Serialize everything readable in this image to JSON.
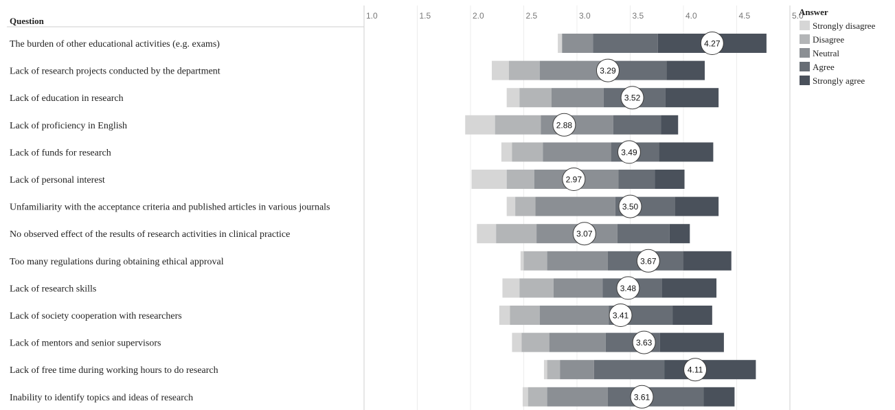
{
  "chart_data": {
    "type": "bar",
    "subtype": "diverging-stacked-likert",
    "row_header": "Question",
    "x_ticks": [
      "1.0",
      "1.5",
      "2.0",
      "2.5",
      "3.0",
      "3.5",
      "4.0",
      "4.5",
      "5.0"
    ],
    "xlim": [
      1.0,
      5.0
    ],
    "grid": true,
    "legend": {
      "title": "Answer",
      "placement": "top-right",
      "entries": [
        {
          "name": "Strongly disagree",
          "color": "#d6d6d6"
        },
        {
          "name": "Disagree",
          "color": "#b3b5b7"
        },
        {
          "name": "Neutral",
          "color": "#8b8f94"
        },
        {
          "name": "Agree",
          "color": "#676d75"
        },
        {
          "name": "Strongly agree",
          "color": "#4a515b"
        }
      ]
    },
    "rows": [
      {
        "question": "The burden of other educational activities (e.g. exams)",
        "mean": 4.27,
        "mean_label": "4.27",
        "segments": [
          {
            "from": 2.82,
            "to": 2.86
          },
          {
            "from": 2.86,
            "to": 2.86
          },
          {
            "from": 2.86,
            "to": 3.15
          },
          {
            "from": 3.15,
            "to": 3.76
          },
          {
            "from": 3.76,
            "to": 4.78
          }
        ]
      },
      {
        "question": "Lack of research projects conducted by the department",
        "mean": 3.29,
        "mean_label": "3.29",
        "segments": [
          {
            "from": 2.2,
            "to": 2.36
          },
          {
            "from": 2.36,
            "to": 2.65
          },
          {
            "from": 2.65,
            "to": 3.22
          },
          {
            "from": 3.22,
            "to": 3.84
          },
          {
            "from": 3.84,
            "to": 4.2
          }
        ]
      },
      {
        "question": "Lack of education in research",
        "mean": 3.52,
        "mean_label": "3.52",
        "segments": [
          {
            "from": 2.34,
            "to": 2.46
          },
          {
            "from": 2.46,
            "to": 2.76
          },
          {
            "from": 2.76,
            "to": 3.25
          },
          {
            "from": 3.25,
            "to": 3.83
          },
          {
            "from": 3.83,
            "to": 4.33
          }
        ]
      },
      {
        "question": "Lack of proficiency in English",
        "mean": 2.88,
        "mean_label": "2.88",
        "segments": [
          {
            "from": 1.95,
            "to": 2.23
          },
          {
            "from": 2.23,
            "to": 2.66
          },
          {
            "from": 2.66,
            "to": 3.34
          },
          {
            "from": 3.34,
            "to": 3.79
          },
          {
            "from": 3.79,
            "to": 3.95
          }
        ]
      },
      {
        "question": "Lack of funds for research",
        "mean": 3.49,
        "mean_label": "3.49",
        "segments": [
          {
            "from": 2.29,
            "to": 2.39
          },
          {
            "from": 2.39,
            "to": 2.68
          },
          {
            "from": 2.68,
            "to": 3.32
          },
          {
            "from": 3.32,
            "to": 3.77
          },
          {
            "from": 3.77,
            "to": 4.28
          }
        ]
      },
      {
        "question": "Lack of personal interest",
        "mean": 2.97,
        "mean_label": "2.97",
        "segments": [
          {
            "from": 2.01,
            "to": 2.34
          },
          {
            "from": 2.34,
            "to": 2.6
          },
          {
            "from": 2.6,
            "to": 3.39
          },
          {
            "from": 3.39,
            "to": 3.73
          },
          {
            "from": 3.73,
            "to": 4.01
          }
        ]
      },
      {
        "question": "Unfamiliarity with the acceptance criteria and published articles in various journals",
        "mean": 3.5,
        "mean_label": "3.50",
        "segments": [
          {
            "from": 2.34,
            "to": 2.42
          },
          {
            "from": 2.42,
            "to": 2.61
          },
          {
            "from": 2.61,
            "to": 3.36
          },
          {
            "from": 3.36,
            "to": 3.92
          },
          {
            "from": 3.92,
            "to": 4.33
          }
        ]
      },
      {
        "question": "No observed effect of the results of research activities in clinical practice",
        "mean": 3.07,
        "mean_label": "3.07",
        "segments": [
          {
            "from": 2.06,
            "to": 2.24
          },
          {
            "from": 2.24,
            "to": 2.62
          },
          {
            "from": 2.62,
            "to": 3.38
          },
          {
            "from": 3.38,
            "to": 3.87
          },
          {
            "from": 3.87,
            "to": 4.06
          }
        ]
      },
      {
        "question": "Too many regulations during obtaining ethical approval",
        "mean": 3.67,
        "mean_label": "3.67",
        "segments": [
          {
            "from": 2.47,
            "to": 2.5
          },
          {
            "from": 2.5,
            "to": 2.72
          },
          {
            "from": 2.72,
            "to": 3.29
          },
          {
            "from": 3.29,
            "to": 4.0
          },
          {
            "from": 4.0,
            "to": 4.45
          }
        ]
      },
      {
        "question": "Lack of research skills",
        "mean": 3.48,
        "mean_label": "3.48",
        "segments": [
          {
            "from": 2.3,
            "to": 2.46
          },
          {
            "from": 2.46,
            "to": 2.78
          },
          {
            "from": 2.78,
            "to": 3.24
          },
          {
            "from": 3.24,
            "to": 3.8
          },
          {
            "from": 3.8,
            "to": 4.31
          }
        ]
      },
      {
        "question": "Lack of society cooperation with researchers",
        "mean": 3.41,
        "mean_label": "3.41",
        "segments": [
          {
            "from": 2.27,
            "to": 2.37
          },
          {
            "from": 2.37,
            "to": 2.65
          },
          {
            "from": 2.65,
            "to": 3.3
          },
          {
            "from": 3.3,
            "to": 3.9
          },
          {
            "from": 3.9,
            "to": 4.27
          }
        ]
      },
      {
        "question": "Lack of mentors and senior supervisors",
        "mean": 3.63,
        "mean_label": "3.63",
        "segments": [
          {
            "from": 2.39,
            "to": 2.48
          },
          {
            "from": 2.48,
            "to": 2.74
          },
          {
            "from": 2.74,
            "to": 3.27
          },
          {
            "from": 3.27,
            "to": 3.78
          },
          {
            "from": 3.78,
            "to": 4.38
          }
        ]
      },
      {
        "question": "Lack of free time during working hours to do research",
        "mean": 4.11,
        "mean_label": "4.11",
        "segments": [
          {
            "from": 2.69,
            "to": 2.72
          },
          {
            "from": 2.72,
            "to": 2.84
          },
          {
            "from": 2.84,
            "to": 3.16
          },
          {
            "from": 3.16,
            "to": 3.82
          },
          {
            "from": 3.82,
            "to": 4.68
          }
        ]
      },
      {
        "question": "Inability to identify topics and ideas of research",
        "mean": 3.61,
        "mean_label": "3.61",
        "segments": [
          {
            "from": 2.49,
            "to": 2.54
          },
          {
            "from": 2.54,
            "to": 2.72
          },
          {
            "from": 2.72,
            "to": 3.29
          },
          {
            "from": 3.29,
            "to": 4.19
          },
          {
            "from": 4.19,
            "to": 4.48
          }
        ]
      }
    ]
  }
}
